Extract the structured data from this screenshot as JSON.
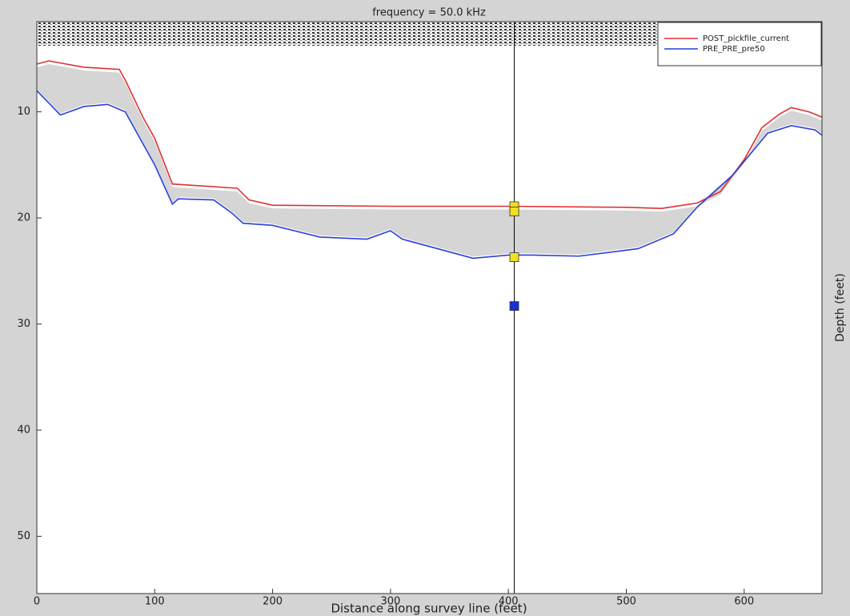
{
  "chart_data": {
    "type": "line",
    "title": "frequency = 50.0 kHz",
    "x_label": "Distance along survey line (feet)",
    "y_label": "Depth (feet)",
    "xlim": [
      0,
      666
    ],
    "ylim": [
      1.5,
      55.4
    ],
    "y_inverted": true,
    "xticks": [
      0,
      100,
      200,
      300,
      400,
      500,
      600
    ],
    "yticks": [
      10,
      20,
      30,
      40,
      50
    ],
    "series": [
      {
        "name": "POST_pickfile_current",
        "color": "#e03030",
        "x": [
          0,
          10,
          40,
          70,
          75,
          90,
          100,
          115,
          170,
          180,
          200,
          300,
          400,
          500,
          530,
          560,
          580,
          600,
          615,
          630,
          640,
          655,
          666
        ],
        "values": [
          5.5,
          5.2,
          5.8,
          6.0,
          7.0,
          10.5,
          12.5,
          16.8,
          17.2,
          18.3,
          18.8,
          18.9,
          18.9,
          19.0,
          19.1,
          18.6,
          17.5,
          14.5,
          11.5,
          10.2,
          9.6,
          10.0,
          10.5
        ]
      },
      {
        "name": "PRE_PRE_pre50",
        "color": "#2a3fd8",
        "x": [
          0,
          20,
          40,
          60,
          75,
          90,
          100,
          115,
          120,
          150,
          165,
          175,
          200,
          240,
          280,
          300,
          310,
          350,
          370,
          400,
          420,
          460,
          510,
          540,
          560,
          590,
          605,
          620,
          640,
          660,
          666
        ],
        "values": [
          8.0,
          10.3,
          9.5,
          9.3,
          10.0,
          13.0,
          15.0,
          18.7,
          18.2,
          18.3,
          19.5,
          20.5,
          20.7,
          21.8,
          22.0,
          21.2,
          22.0,
          23.2,
          23.8,
          23.5,
          23.5,
          23.6,
          22.9,
          21.5,
          19.0,
          16.0,
          14.0,
          12.0,
          11.3,
          11.7,
          12.2
        ]
      }
    ],
    "legend": "upper right",
    "cursor": {
      "x": 405,
      "color": "#000000",
      "markers": [
        {
          "value": 18.9,
          "color": "#f0e020"
        },
        {
          "value": 19.4,
          "color": "#f0e020"
        },
        {
          "value": 23.7,
          "color": "#f0e020"
        },
        {
          "value": 28.3,
          "color": "#1a2fd0"
        }
      ]
    }
  }
}
